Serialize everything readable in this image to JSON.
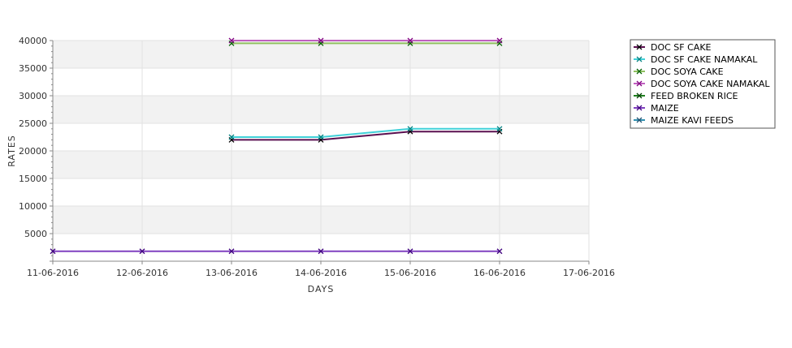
{
  "chart_data": {
    "type": "line",
    "title": "",
    "xlabel": "DAYS",
    "ylabel": "RATES",
    "x_ticks": [
      "11-06-2016",
      "12-06-2016",
      "13-06-2016",
      "14-06-2016",
      "15-06-2016",
      "16-06-2016",
      "17-06-2016"
    ],
    "y_ticks": [
      5000,
      10000,
      15000,
      20000,
      25000,
      30000,
      35000,
      40000
    ],
    "ylim": [
      0,
      40000
    ],
    "grid": true,
    "legend_position": "right",
    "series": [
      {
        "name": "DOC SF CAKE",
        "color": "#5a1050",
        "marker_color": "#000000",
        "points": [
          [
            "13-06-2016",
            22000
          ],
          [
            "14-06-2016",
            22000
          ],
          [
            "15-06-2016",
            23500
          ],
          [
            "16-06-2016",
            23500
          ]
        ]
      },
      {
        "name": "DOC SF CAKE NAMAKAL",
        "color": "#40d0d8",
        "marker_color": "#008080",
        "points": [
          [
            "13-06-2016",
            22500
          ],
          [
            "14-06-2016",
            22500
          ],
          [
            "15-06-2016",
            24000
          ],
          [
            "16-06-2016",
            24000
          ]
        ]
      },
      {
        "name": "DOC SOYA CAKE",
        "color": "#90c060",
        "marker_color": "#006000",
        "points": [
          [
            "13-06-2016",
            39500
          ],
          [
            "14-06-2016",
            39500
          ],
          [
            "15-06-2016",
            39500
          ],
          [
            "16-06-2016",
            39500
          ]
        ]
      },
      {
        "name": "DOC SOYA CAKE NAMAKAL",
        "color": "#c060c0",
        "marker_color": "#800080",
        "points": [
          [
            "13-06-2016",
            40000
          ],
          [
            "14-06-2016",
            40000
          ],
          [
            "15-06-2016",
            40000
          ],
          [
            "16-06-2016",
            40000
          ]
        ]
      },
      {
        "name": "FEED BROKEN RICE",
        "color": "#208020",
        "marker_color": "#004000",
        "points": []
      },
      {
        "name": "MAIZE",
        "color": "#8040c0",
        "marker_color": "#400080",
        "points": [
          [
            "11-06-2016",
            1800
          ],
          [
            "12-06-2016",
            1800
          ],
          [
            "13-06-2016",
            1800
          ],
          [
            "14-06-2016",
            1800
          ],
          [
            "15-06-2016",
            1800
          ],
          [
            "16-06-2016",
            1800
          ]
        ]
      },
      {
        "name": "MAIZE KAVI FEEDS",
        "color": "#3090b0",
        "marker_color": "#205070",
        "points": []
      }
    ]
  }
}
